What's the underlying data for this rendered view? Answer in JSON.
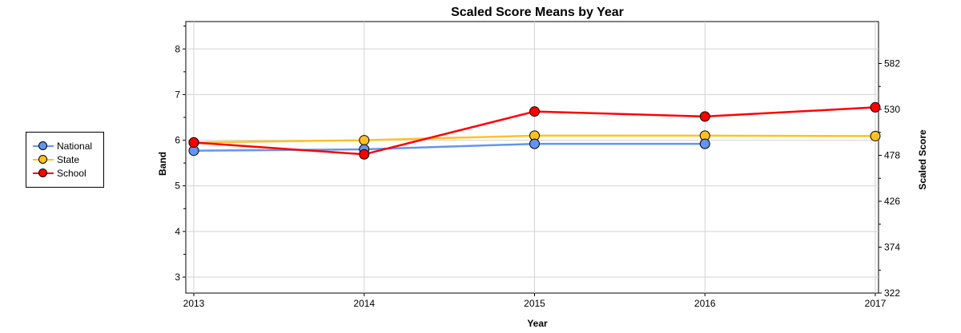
{
  "chart_data": {
    "type": "line",
    "title": "Scaled Score Means by Year",
    "xlabel": "Year",
    "ylabel": "Band",
    "y2label": "Scaled Score",
    "x": [
      "2013",
      "2014",
      "2015",
      "2016",
      "2017"
    ],
    "ylim": [
      2.65,
      8.6
    ],
    "yticks": [
      "3",
      "4",
      "5",
      "6",
      "7",
      "8"
    ],
    "y2ticks": [
      "322",
      "374",
      "426",
      "478",
      "530",
      "582"
    ],
    "grid": true,
    "legend_position": "left",
    "series": [
      {
        "name": "National",
        "color": "#6495ED",
        "values": [
          5.77,
          5.8,
          5.92,
          5.92,
          null
        ]
      },
      {
        "name": "State",
        "color": "#FFC125",
        "values": [
          5.95,
          6.0,
          6.1,
          6.1,
          6.09
        ]
      },
      {
        "name": "School",
        "color": "#FF0000",
        "values": [
          5.95,
          5.69,
          6.63,
          6.52,
          6.72
        ]
      }
    ]
  }
}
